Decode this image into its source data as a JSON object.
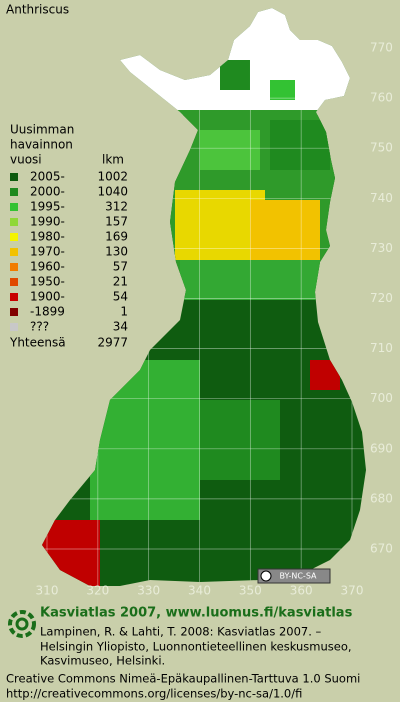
{
  "title": "Anthriscus",
  "legend": {
    "header": [
      "Uusimman",
      "havainnon",
      "vuosi"
    ],
    "count_header": "lkm",
    "rows": [
      {
        "label": "2005-",
        "count": 1002,
        "color": "#0d5a0d"
      },
      {
        "label": "2000-",
        "count": 1040,
        "color": "#1f8a1f"
      },
      {
        "label": "1995-",
        "count": 312,
        "color": "#33c233"
      },
      {
        "label": "1990-",
        "count": 157,
        "color": "#8fd838"
      },
      {
        "label": "1980-",
        "count": 169,
        "color": "#f4f400"
      },
      {
        "label": "1970-",
        "count": 130,
        "color": "#f2c200"
      },
      {
        "label": "1960-",
        "count": 57,
        "color": "#f07c00"
      },
      {
        "label": "1950-",
        "count": 21,
        "color": "#e04a00"
      },
      {
        "label": "1900-",
        "count": 54,
        "color": "#c80000"
      },
      {
        "label": "-1899",
        "count": 1,
        "color": "#800000"
      },
      {
        "label": "???",
        "count": 34,
        "color": "#c8c8c8"
      }
    ],
    "total_label": "Yhteensä",
    "total": 2977
  },
  "grid": {
    "x_ticks": [
      310,
      320,
      330,
      340,
      350,
      360,
      370
    ],
    "y_ticks": [
      670,
      680,
      690,
      700,
      710,
      720,
      730,
      740,
      750,
      760,
      770
    ]
  },
  "license_badge": "BY-NC-SA",
  "footer": {
    "site": "Kasviatlas 2007, www.luomus.fi/kasviatlas",
    "citation": [
      "Lampinen, R. & Lahti, T. 2008: Kasviatlas 2007. –",
      "Helsingin Yliopisto, Luonnontieteellinen keskusmuseo,",
      "Kasvimuseo, Helsinki."
    ],
    "license": [
      "Creative Commons Nimeä-Epäkaupallinen-Tarttuva 1.0 Suomi",
      "http://creativecommons.org/licenses/by-nc-sa/1.0/fi"
    ]
  }
}
